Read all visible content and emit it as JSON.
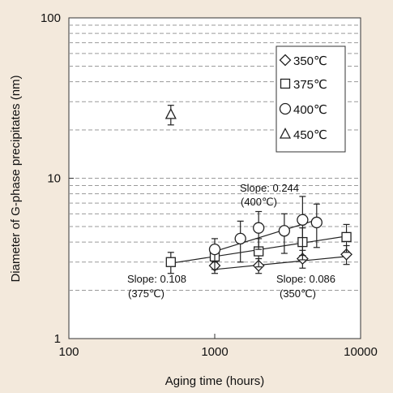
{
  "chart_data": {
    "type": "scatter",
    "xlabel": "Aging time (hours)",
    "ylabel": "Diameter of G-phase precipitates (nm)",
    "x_scale": "log",
    "y_scale": "log",
    "xlim": [
      100,
      10000
    ],
    "ylim": [
      1,
      100
    ],
    "x_ticks": [
      "100",
      "1000",
      "10000"
    ],
    "y_ticks": [
      "1",
      "10",
      "100"
    ],
    "grid": "horizontal dashed minor gridlines",
    "legend_position": "top-right",
    "series": [
      {
        "name": "350℃",
        "marker": "diamond",
        "points": [
          {
            "x": 1000,
            "y": 2.85,
            "err": 0.3
          },
          {
            "x": 2000,
            "y": 2.85,
            "err": 0.3
          },
          {
            "x": 4000,
            "y": 3.15,
            "err": 0.4
          },
          {
            "x": 8000,
            "y": 3.35,
            "err": 0.45
          }
        ],
        "fit": {
          "x": [
            1000,
            8000
          ],
          "y": [
            2.7,
            3.25
          ]
        }
      },
      {
        "name": "375℃",
        "marker": "square",
        "points": [
          {
            "x": 500,
            "y": 3.0,
            "err": 0.45
          },
          {
            "x": 1000,
            "y": 3.25,
            "err": 0.55
          },
          {
            "x": 2000,
            "y": 3.5,
            "err": 0.7
          },
          {
            "x": 4000,
            "y": 4.0,
            "err": 0.9
          },
          {
            "x": 8000,
            "y": 4.3,
            "err": 0.85
          }
        ],
        "fit": {
          "x": [
            500,
            8000
          ],
          "y": [
            2.95,
            4.35
          ]
        }
      },
      {
        "name": "400℃",
        "marker": "circle",
        "points": [
          {
            "x": 1000,
            "y": 3.6,
            "err": 0.6
          },
          {
            "x": 1500,
            "y": 4.2,
            "err": 1.2
          },
          {
            "x": 2000,
            "y": 4.9,
            "err": 1.3
          },
          {
            "x": 3000,
            "y": 4.7,
            "err": 1.3
          },
          {
            "x": 4000,
            "y": 5.5,
            "err": 2.2
          },
          {
            "x": 5000,
            "y": 5.3,
            "err": 1.6
          }
        ],
        "fit": {
          "x": [
            1000,
            5000
          ],
          "y": [
            3.5,
            5.5
          ]
        }
      },
      {
        "name": "450℃",
        "marker": "triangle",
        "points": [
          {
            "x": 500,
            "y": 25,
            "err": 3.5
          }
        ]
      }
    ],
    "annotations": [
      {
        "text": "Slope: 0.244",
        "sub": "(400℃)"
      },
      {
        "text": "Slope: 0.108",
        "sub": "(375℃)"
      },
      {
        "text": "Slope: 0.086",
        "sub": "(350℃)"
      }
    ]
  }
}
